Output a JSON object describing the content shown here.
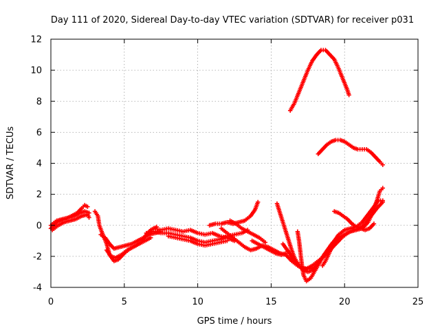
{
  "chart_data": {
    "type": "scatter",
    "title": "Day 111 of 2020, Sidereal Day-to-day VTEC variation (SDTVAR) for receiver p031",
    "xlabel": "GPS time / hours",
    "ylabel": "SDTVAR / TECUs",
    "xlim": [
      0,
      25
    ],
    "ylim": [
      -4,
      12
    ],
    "xticks": [
      0,
      5,
      10,
      15,
      20,
      25
    ],
    "yticks": [
      -4,
      -2,
      0,
      2,
      4,
      6,
      8,
      10,
      12
    ],
    "grid": true,
    "marker": "+",
    "color": "#ff0000",
    "series": [
      {
        "points": [
          [
            0.0,
            -0.2
          ],
          [
            0.3,
            0.1
          ],
          [
            0.6,
            0.3
          ],
          [
            1.0,
            0.4
          ],
          [
            1.4,
            0.6
          ],
          [
            1.8,
            0.8
          ],
          [
            2.1,
            1.1
          ],
          [
            2.3,
            1.3
          ],
          [
            2.5,
            1.2
          ]
        ]
      },
      {
        "points": [
          [
            0.0,
            0.0
          ],
          [
            0.4,
            0.3
          ],
          [
            0.8,
            0.4
          ],
          [
            1.2,
            0.5
          ],
          [
            1.6,
            0.6
          ],
          [
            2.0,
            0.8
          ],
          [
            2.3,
            0.9
          ],
          [
            2.6,
            0.8
          ]
        ]
      },
      {
        "points": [
          [
            0.1,
            -0.3
          ],
          [
            0.5,
            0.0
          ],
          [
            0.9,
            0.2
          ],
          [
            1.3,
            0.3
          ],
          [
            1.7,
            0.4
          ],
          [
            2.1,
            0.6
          ],
          [
            2.5,
            0.7
          ],
          [
            2.6,
            0.5
          ]
        ]
      },
      {
        "points": [
          [
            3.0,
            0.9
          ],
          [
            3.2,
            0.6
          ],
          [
            3.3,
            0.0
          ],
          [
            3.5,
            -0.5
          ],
          [
            3.8,
            -1.2
          ],
          [
            4.0,
            -1.9
          ],
          [
            4.3,
            -2.3
          ],
          [
            4.6,
            -2.2
          ],
          [
            5.0,
            -1.8
          ],
          [
            5.4,
            -1.5
          ],
          [
            5.8,
            -1.3
          ],
          [
            6.2,
            -1.0
          ],
          [
            6.5,
            -0.6
          ],
          [
            6.8,
            -0.3
          ],
          [
            7.2,
            -0.1
          ]
        ]
      },
      {
        "points": [
          [
            3.4,
            -0.6
          ],
          [
            3.7,
            -0.8
          ],
          [
            4.0,
            -1.2
          ],
          [
            4.3,
            -1.5
          ],
          [
            4.7,
            -1.4
          ],
          [
            5.1,
            -1.3
          ],
          [
            5.5,
            -1.2
          ],
          [
            5.9,
            -1.0
          ],
          [
            6.3,
            -0.8
          ],
          [
            6.7,
            -0.6
          ],
          [
            7.1,
            -0.5
          ],
          [
            7.5,
            -0.4
          ]
        ]
      },
      {
        "points": [
          [
            3.8,
            -1.6
          ],
          [
            4.1,
            -2.0
          ],
          [
            4.4,
            -2.1
          ],
          [
            4.8,
            -1.9
          ],
          [
            5.2,
            -1.6
          ],
          [
            5.6,
            -1.4
          ],
          [
            6.0,
            -1.2
          ],
          [
            6.4,
            -1.0
          ],
          [
            6.8,
            -0.8
          ]
        ]
      },
      {
        "points": [
          [
            6.5,
            -0.5
          ],
          [
            7.0,
            -0.4
          ],
          [
            7.5,
            -0.5
          ],
          [
            8.0,
            -0.5
          ],
          [
            8.5,
            -0.6
          ],
          [
            9.0,
            -0.7
          ],
          [
            9.5,
            -0.8
          ],
          [
            10.0,
            -1.0
          ],
          [
            10.5,
            -1.1
          ],
          [
            11.0,
            -1.0
          ],
          [
            11.5,
            -0.9
          ],
          [
            12.0,
            -0.7
          ],
          [
            12.5,
            -0.6
          ],
          [
            13.0,
            -0.5
          ],
          [
            13.4,
            -0.3
          ]
        ]
      },
      {
        "points": [
          [
            7.0,
            -0.2
          ],
          [
            7.5,
            -0.3
          ],
          [
            8.0,
            -0.2
          ],
          [
            8.5,
            -0.3
          ],
          [
            9.0,
            -0.4
          ],
          [
            9.5,
            -0.3
          ],
          [
            10.0,
            -0.5
          ],
          [
            10.5,
            -0.6
          ],
          [
            11.0,
            -0.5
          ],
          [
            11.5,
            -0.7
          ],
          [
            12.0,
            -0.8
          ],
          [
            12.5,
            -1.0
          ]
        ]
      },
      {
        "points": [
          [
            8.0,
            -0.7
          ],
          [
            8.5,
            -0.8
          ],
          [
            9.0,
            -0.9
          ],
          [
            9.5,
            -1.0
          ],
          [
            10.0,
            -1.2
          ],
          [
            10.5,
            -1.3
          ],
          [
            11.0,
            -1.2
          ],
          [
            11.5,
            -1.1
          ],
          [
            12.0,
            -1.0
          ]
        ]
      },
      {
        "points": [
          [
            10.8,
            0.0
          ],
          [
            11.2,
            0.1
          ],
          [
            11.6,
            0.1
          ],
          [
            12.0,
            0.2
          ],
          [
            12.4,
            0.1
          ],
          [
            12.8,
            0.2
          ],
          [
            13.2,
            0.3
          ],
          [
            13.6,
            0.6
          ],
          [
            13.9,
            1.0
          ],
          [
            14.1,
            1.5
          ]
        ]
      },
      {
        "points": [
          [
            12.2,
            0.3
          ],
          [
            12.6,
            0.1
          ],
          [
            13.0,
            -0.2
          ],
          [
            13.4,
            -0.4
          ],
          [
            13.8,
            -0.6
          ],
          [
            14.2,
            -0.8
          ],
          [
            14.6,
            -1.1
          ]
        ]
      },
      {
        "points": [
          [
            11.6,
            -0.2
          ],
          [
            12.0,
            -0.5
          ],
          [
            12.4,
            -0.8
          ],
          [
            12.8,
            -1.1
          ],
          [
            13.2,
            -1.4
          ],
          [
            13.6,
            -1.6
          ],
          [
            14.0,
            -1.5
          ],
          [
            14.4,
            -1.3
          ],
          [
            14.8,
            -1.4
          ],
          [
            15.2,
            -1.6
          ],
          [
            15.6,
            -1.8
          ],
          [
            16.0,
            -1.9
          ],
          [
            16.4,
            -2.3
          ],
          [
            16.8,
            -2.6
          ],
          [
            17.2,
            -2.8
          ],
          [
            17.6,
            -2.8
          ],
          [
            18.0,
            -2.7
          ]
        ]
      },
      {
        "points": [
          [
            13.7,
            -1.0
          ],
          [
            14.1,
            -1.2
          ],
          [
            14.5,
            -1.4
          ],
          [
            14.9,
            -1.6
          ],
          [
            15.3,
            -1.8
          ],
          [
            15.7,
            -1.9
          ],
          [
            16.0,
            -1.8
          ]
        ]
      },
      {
        "points": [
          [
            15.4,
            1.4
          ],
          [
            15.6,
            0.8
          ],
          [
            15.8,
            0.2
          ],
          [
            16.0,
            -0.4
          ],
          [
            16.2,
            -1.0
          ],
          [
            16.4,
            -1.6
          ],
          [
            16.6,
            -2.1
          ],
          [
            16.9,
            -2.6
          ],
          [
            17.2,
            -2.9
          ],
          [
            17.5,
            -3.0
          ],
          [
            17.8,
            -2.9
          ],
          [
            18.1,
            -2.6
          ],
          [
            18.4,
            -2.2
          ],
          [
            18.7,
            -1.8
          ],
          [
            19.0,
            -1.4
          ],
          [
            19.3,
            -1.0
          ],
          [
            19.6,
            -0.6
          ],
          [
            20.0,
            -0.3
          ],
          [
            20.4,
            -0.2
          ],
          [
            20.8,
            -0.1
          ],
          [
            21.2,
            0.2
          ],
          [
            21.6,
            0.7
          ],
          [
            22.0,
            1.2
          ],
          [
            22.3,
            1.6
          ],
          [
            22.6,
            1.6
          ]
        ]
      },
      {
        "points": [
          [
            15.8,
            -1.2
          ],
          [
            16.1,
            -1.6
          ],
          [
            16.4,
            -2.0
          ],
          [
            16.7,
            -2.4
          ],
          [
            17.0,
            -2.7
          ],
          [
            17.4,
            -2.8
          ],
          [
            17.8,
            -2.6
          ],
          [
            18.2,
            -2.3
          ],
          [
            18.6,
            -2.0
          ],
          [
            19.0,
            -1.6
          ],
          [
            19.4,
            -1.2
          ],
          [
            19.8,
            -0.8
          ],
          [
            20.2,
            -0.5
          ],
          [
            20.6,
            -0.3
          ],
          [
            21.0,
            -0.2
          ],
          [
            21.4,
            0.1
          ],
          [
            21.8,
            0.6
          ],
          [
            22.2,
            1.1
          ],
          [
            22.6,
            1.5
          ]
        ]
      },
      {
        "points": [
          [
            16.8,
            -0.4
          ],
          [
            16.9,
            -1.0
          ],
          [
            17.0,
            -1.8
          ],
          [
            17.1,
            -2.6
          ],
          [
            17.2,
            -3.2
          ],
          [
            17.4,
            -3.6
          ],
          [
            17.7,
            -3.4
          ],
          [
            18.0,
            -2.9
          ],
          [
            18.3,
            -2.4
          ],
          [
            18.6,
            -1.9
          ],
          [
            18.9,
            -1.5
          ],
          [
            19.2,
            -1.1
          ],
          [
            19.6,
            -0.8
          ],
          [
            20.0,
            -0.6
          ],
          [
            20.4,
            -0.4
          ],
          [
            20.8,
            -0.3
          ],
          [
            21.2,
            -0.2
          ],
          [
            21.6,
            0.2
          ],
          [
            21.9,
            0.8
          ],
          [
            22.2,
            1.6
          ],
          [
            22.4,
            2.2
          ],
          [
            22.6,
            2.4
          ]
        ]
      },
      {
        "points": [
          [
            18.5,
            -2.6
          ],
          [
            18.7,
            -2.3
          ],
          [
            18.9,
            -1.9
          ],
          [
            19.1,
            -1.5
          ],
          [
            19.3,
            -1.2
          ],
          [
            19.6,
            -1.0
          ]
        ]
      },
      {
        "points": [
          [
            19.3,
            0.9
          ],
          [
            19.6,
            0.8
          ],
          [
            19.9,
            0.6
          ],
          [
            20.2,
            0.4
          ],
          [
            20.5,
            0.1
          ],
          [
            20.8,
            -0.1
          ],
          [
            21.1,
            -0.2
          ],
          [
            21.4,
            -0.3
          ],
          [
            21.7,
            -0.2
          ],
          [
            22.0,
            0.1
          ]
        ]
      },
      {
        "points": [
          [
            16.3,
            7.4
          ],
          [
            16.6,
            7.9
          ],
          [
            16.9,
            8.6
          ],
          [
            17.2,
            9.3
          ],
          [
            17.5,
            10.0
          ],
          [
            17.8,
            10.6
          ],
          [
            18.1,
            11.0
          ],
          [
            18.4,
            11.3
          ],
          [
            18.7,
            11.3
          ],
          [
            19.0,
            11.0
          ],
          [
            19.3,
            10.7
          ],
          [
            19.6,
            10.1
          ],
          [
            19.9,
            9.4
          ],
          [
            20.2,
            8.7
          ],
          [
            20.3,
            8.4
          ]
        ]
      },
      {
        "points": [
          [
            18.2,
            4.6
          ],
          [
            18.5,
            4.9
          ],
          [
            18.8,
            5.2
          ],
          [
            19.1,
            5.4
          ],
          [
            19.4,
            5.5
          ],
          [
            19.7,
            5.5
          ],
          [
            20.0,
            5.4
          ],
          [
            20.3,
            5.2
          ],
          [
            20.6,
            5.0
          ],
          [
            20.9,
            4.9
          ],
          [
            21.2,
            4.9
          ],
          [
            21.5,
            4.9
          ],
          [
            21.8,
            4.7
          ],
          [
            22.1,
            4.4
          ],
          [
            22.4,
            4.1
          ],
          [
            22.6,
            3.9
          ]
        ]
      }
    ]
  }
}
